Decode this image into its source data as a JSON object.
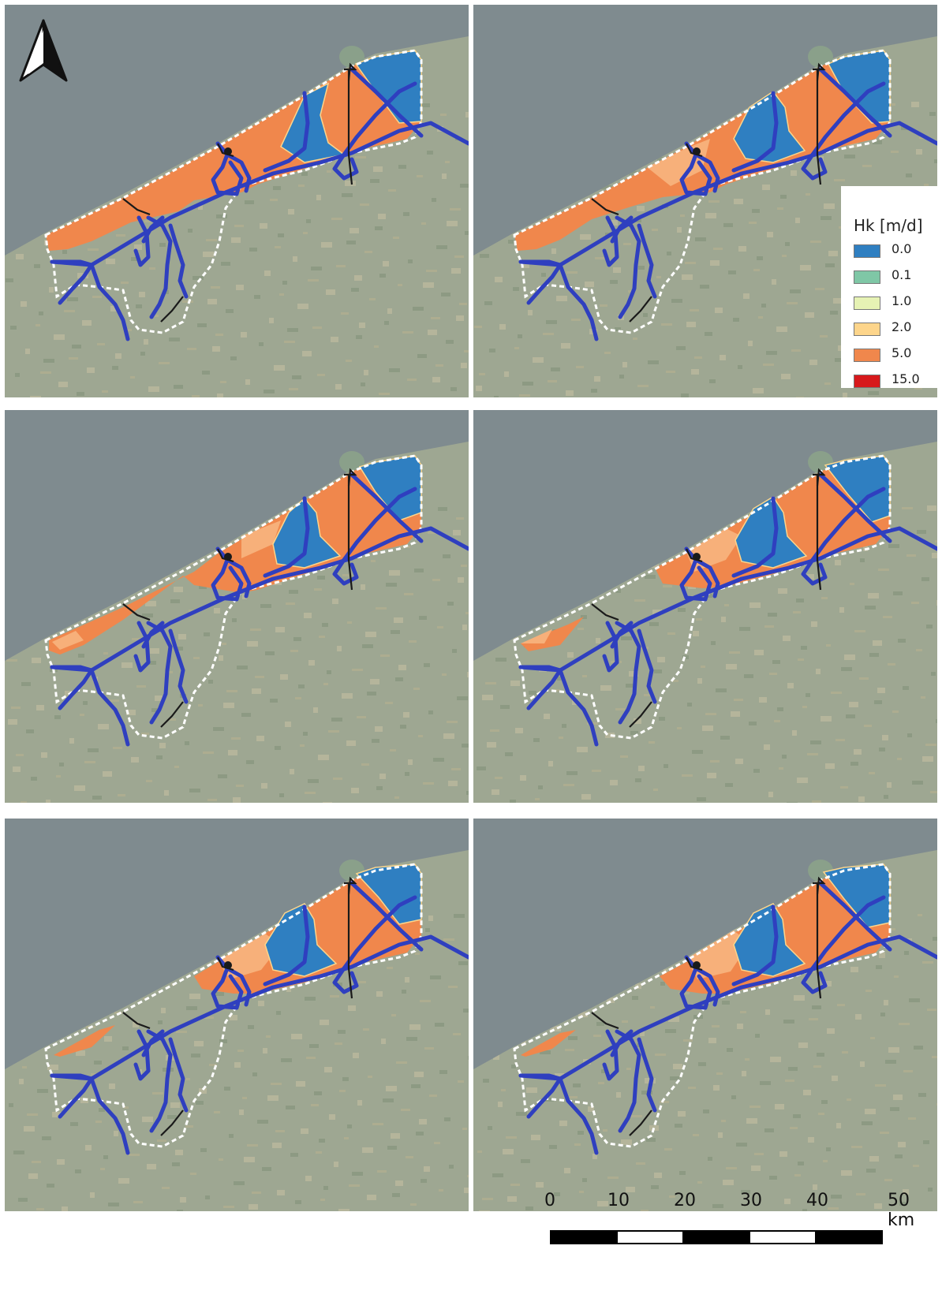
{
  "panels": [
    "p1",
    "p2",
    "p3",
    "p4",
    "p5",
    "p6"
  ],
  "legend": {
    "title": "Hk [m/d]",
    "items": [
      {
        "label": "0.0",
        "color": "#2f7fc1"
      },
      {
        "label": "0.1",
        "color": "#7fc7a6"
      },
      {
        "label": "1.0",
        "color": "#e6f2b4"
      },
      {
        "label": "2.0",
        "color": "#fdd58b"
      },
      {
        "label": "5.0",
        "color": "#f0874c"
      },
      {
        "label": "15.0",
        "color": "#d7191c"
      }
    ]
  },
  "scale": {
    "ticks": [
      "0",
      "10",
      "20",
      "30",
      "40",
      "50 km"
    ]
  },
  "colors": {
    "sea": "#7f8b8f",
    "land": "#9ea792",
    "river": "#2f3fbf",
    "boundary": "#ffffff",
    "canal": "#1a1a1a"
  }
}
